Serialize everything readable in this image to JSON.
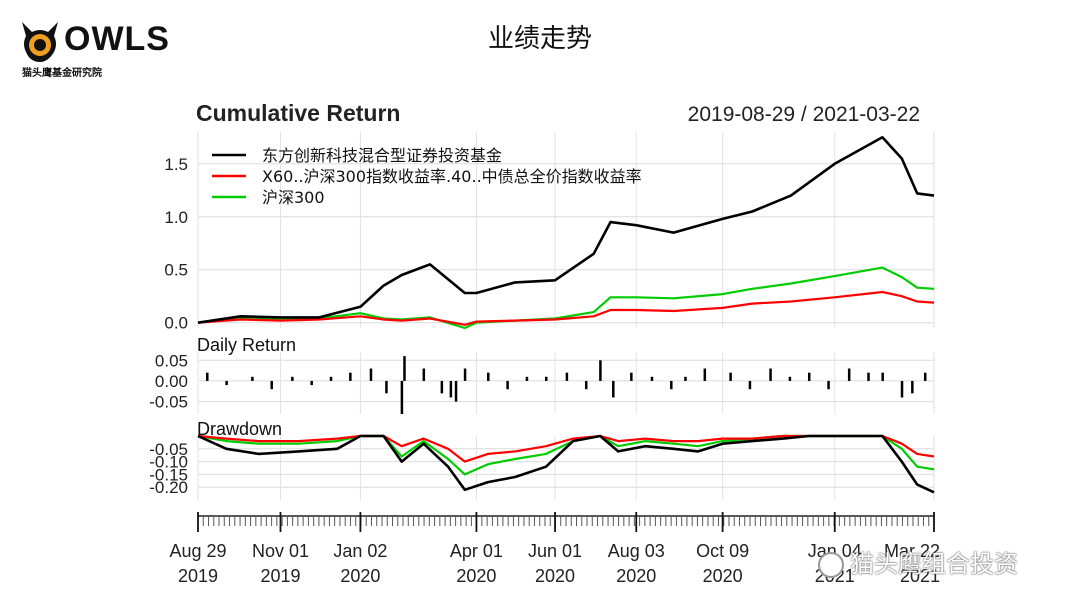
{
  "header": {
    "title": "业绩走势",
    "logo_text": "OWLS",
    "logo_subtitle": "猫头鹰基金研究院"
  },
  "watermark": "猫头鹰组合投资",
  "chart_data": [
    {
      "type": "line",
      "title": "Cumulative Return",
      "date_range": "2019-08-29 / 2021-03-22",
      "yticks": [
        "0.0",
        "0.5",
        "1.0",
        "1.5"
      ],
      "ylim": [
        -0.05,
        1.8
      ],
      "legend_position": "top-left",
      "x_dates": [
        "2019-08-29",
        "2019-10-01",
        "2019-11-01",
        "2019-12-01",
        "2020-01-02",
        "2020-01-20",
        "2020-02-03",
        "2020-02-25",
        "2020-03-23",
        "2020-04-01",
        "2020-05-01",
        "2020-06-01",
        "2020-07-01",
        "2020-07-14",
        "2020-08-03",
        "2020-09-01",
        "2020-10-09",
        "2020-11-01",
        "2020-12-01",
        "2021-01-04",
        "2021-02-10",
        "2021-02-25",
        "2021-03-09",
        "2021-03-22"
      ],
      "series": [
        {
          "name": "东方创新科技混合型证券投资基金",
          "color": "#000000",
          "values": [
            0.0,
            0.06,
            0.05,
            0.05,
            0.15,
            0.35,
            0.45,
            0.55,
            0.28,
            0.28,
            0.38,
            0.4,
            0.65,
            0.95,
            0.92,
            0.85,
            0.98,
            1.05,
            1.2,
            1.5,
            1.75,
            1.55,
            1.22,
            1.2
          ]
        },
        {
          "name": "X60..沪深300指数收益率.40..中债总全价指数收益率",
          "color": "#ff0000",
          "values": [
            0.0,
            0.03,
            0.02,
            0.03,
            0.06,
            0.03,
            0.02,
            0.04,
            -0.02,
            0.01,
            0.02,
            0.03,
            0.06,
            0.12,
            0.12,
            0.11,
            0.14,
            0.18,
            0.2,
            0.24,
            0.29,
            0.25,
            0.2,
            0.19
          ]
        },
        {
          "name": "沪深300",
          "color": "#00cc00",
          "values": [
            0.0,
            0.05,
            0.03,
            0.04,
            0.09,
            0.04,
            0.03,
            0.05,
            -0.05,
            0.0,
            0.02,
            0.04,
            0.1,
            0.24,
            0.24,
            0.23,
            0.27,
            0.32,
            0.37,
            0.44,
            0.52,
            0.43,
            0.33,
            0.32
          ]
        }
      ]
    },
    {
      "type": "bar",
      "title": "Daily Return",
      "yticks": [
        "0.05",
        "0.00",
        "-0.05"
      ],
      "ylim": [
        -0.08,
        0.07
      ],
      "x_dates": [
        "2019-09-05",
        "2019-09-20",
        "2019-10-10",
        "2019-10-25",
        "2019-11-10",
        "2019-11-25",
        "2019-12-10",
        "2019-12-25",
        "2020-01-10",
        "2020-01-22",
        "2020-02-03",
        "2020-02-05",
        "2020-02-20",
        "2020-03-05",
        "2020-03-12",
        "2020-03-16",
        "2020-03-23",
        "2020-04-10",
        "2020-04-25",
        "2020-05-10",
        "2020-05-25",
        "2020-06-10",
        "2020-06-25",
        "2020-07-06",
        "2020-07-16",
        "2020-07-30",
        "2020-08-15",
        "2020-08-30",
        "2020-09-10",
        "2020-09-25",
        "2020-10-15",
        "2020-10-30",
        "2020-11-15",
        "2020-11-30",
        "2020-12-15",
        "2020-12-30",
        "2021-01-15",
        "2021-01-30",
        "2021-02-10",
        "2021-02-25",
        "2021-03-05",
        "2021-03-15"
      ],
      "values": [
        0.02,
        -0.01,
        0.01,
        -0.02,
        0.01,
        -0.01,
        0.01,
        0.02,
        0.03,
        -0.03,
        -0.08,
        0.06,
        0.03,
        -0.03,
        -0.04,
        -0.05,
        0.03,
        0.02,
        -0.02,
        0.01,
        0.01,
        0.02,
        -0.02,
        0.05,
        -0.04,
        0.02,
        0.01,
        -0.02,
        0.01,
        0.03,
        0.02,
        -0.02,
        0.03,
        0.01,
        0.02,
        -0.02,
        0.03,
        0.02,
        0.02,
        -0.04,
        -0.03,
        0.02
      ]
    },
    {
      "type": "line",
      "title": "Drawdown",
      "yticks": [
        "-0.05",
        "-0.10",
        "-0.15",
        "-0.20"
      ],
      "ylim": [
        -0.25,
        0.0
      ],
      "x_dates": [
        "2019-08-29",
        "2019-09-20",
        "2019-10-15",
        "2019-11-15",
        "2019-12-15",
        "2020-01-02",
        "2020-01-20",
        "2020-02-03",
        "2020-02-20",
        "2020-03-10",
        "2020-03-23",
        "2020-04-10",
        "2020-05-01",
        "2020-05-25",
        "2020-06-15",
        "2020-07-06",
        "2020-07-20",
        "2020-08-10",
        "2020-09-01",
        "2020-09-20",
        "2020-10-09",
        "2020-11-01",
        "2020-11-25",
        "2020-12-15",
        "2021-01-04",
        "2021-01-20",
        "2021-02-10",
        "2021-02-25",
        "2021-03-09",
        "2021-03-22"
      ],
      "series": [
        {
          "name": "东方创新科技混合型证券投资基金",
          "color": "#000000",
          "values": [
            0.0,
            -0.05,
            -0.07,
            -0.06,
            -0.05,
            0.0,
            0.0,
            -0.1,
            -0.03,
            -0.12,
            -0.21,
            -0.18,
            -0.16,
            -0.12,
            -0.02,
            0.0,
            -0.06,
            -0.04,
            -0.05,
            -0.06,
            -0.03,
            -0.02,
            -0.01,
            0.0,
            0.0,
            0.0,
            0.0,
            -0.1,
            -0.19,
            -0.22
          ]
        },
        {
          "name": "X60..沪深300指数收益率.40..中债总全价指数收益率",
          "color": "#ff0000",
          "values": [
            0.0,
            -0.01,
            -0.02,
            -0.02,
            -0.01,
            0.0,
            0.0,
            -0.04,
            -0.01,
            -0.05,
            -0.1,
            -0.07,
            -0.06,
            -0.04,
            -0.01,
            0.0,
            -0.02,
            -0.01,
            -0.02,
            -0.02,
            -0.01,
            -0.01,
            0.0,
            0.0,
            0.0,
            0.0,
            0.0,
            -0.03,
            -0.07,
            -0.08
          ]
        },
        {
          "name": "沪深300",
          "color": "#00cc00",
          "values": [
            0.0,
            -0.02,
            -0.03,
            -0.03,
            -0.02,
            0.0,
            0.0,
            -0.08,
            -0.02,
            -0.09,
            -0.15,
            -0.11,
            -0.09,
            -0.07,
            -0.02,
            0.0,
            -0.04,
            -0.02,
            -0.03,
            -0.04,
            -0.02,
            -0.01,
            0.0,
            0.0,
            0.0,
            0.0,
            0.0,
            -0.05,
            -0.12,
            -0.13
          ]
        }
      ]
    }
  ],
  "x_axis": {
    "domain": [
      "2019-08-29",
      "2021-03-22"
    ],
    "tick_dates": [
      "2019-08-29",
      "2019-11-01",
      "2020-01-02",
      "2020-04-01",
      "2020-06-01",
      "2020-08-03",
      "2020-10-09",
      "2021-01-04",
      "2021-03-22"
    ],
    "tick_labels": [
      [
        "Aug 29",
        "2019"
      ],
      [
        "Nov 01",
        "2019"
      ],
      [
        "Jan 02",
        "2020"
      ],
      [
        "Apr 01",
        "2020"
      ],
      [
        "Jun 01",
        "2020"
      ],
      [
        "Aug 03",
        "2020"
      ],
      [
        "Oct 09",
        "2020"
      ],
      [
        "Jan 04",
        "2021"
      ],
      [
        "Mar 22",
        "2021"
      ]
    ]
  }
}
